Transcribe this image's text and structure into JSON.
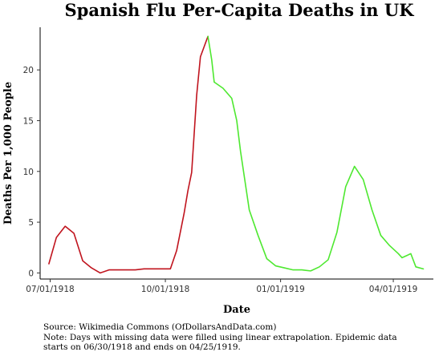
{
  "chart_data": {
    "type": "line",
    "title": "Spanish Flu Per-Capita Deaths in UK",
    "xlabel": "Date",
    "ylabel": "Deaths Per 1,000 People",
    "x_ticks": [
      "07/01/1918",
      "10/01/1918",
      "01/01/1919",
      "04/01/1919"
    ],
    "y_ticks": [
      0,
      5,
      10,
      15,
      20
    ],
    "xlim": [
      "1918-06-23",
      "1919-05-03"
    ],
    "ylim": [
      -0.6,
      24.2
    ],
    "grid": false,
    "legend": "none",
    "series": [
      {
        "color": "#c0141e",
        "points": [
          {
            "x": "1918-06-30",
            "y": 0.9
          },
          {
            "x": "1918-07-06",
            "y": 3.5
          },
          {
            "x": "1918-07-13",
            "y": 4.6
          },
          {
            "x": "1918-07-20",
            "y": 3.9
          },
          {
            "x": "1918-07-27",
            "y": 1.2
          },
          {
            "x": "1918-08-03",
            "y": 0.5
          },
          {
            "x": "1918-08-10",
            "y": 0.0
          },
          {
            "x": "1918-08-17",
            "y": 0.3
          },
          {
            "x": "1918-08-24",
            "y": 0.3
          },
          {
            "x": "1918-08-31",
            "y": 0.3
          },
          {
            "x": "1918-09-07",
            "y": 0.3
          },
          {
            "x": "1918-09-14",
            "y": 0.4
          },
          {
            "x": "1918-09-21",
            "y": 0.4
          },
          {
            "x": "1918-09-28",
            "y": 0.4
          },
          {
            "x": "1918-10-05",
            "y": 0.4
          },
          {
            "x": "1918-10-10",
            "y": 2.2
          },
          {
            "x": "1918-10-16",
            "y": 5.9
          },
          {
            "x": "1918-10-19",
            "y": 8.1
          },
          {
            "x": "1918-10-22",
            "y": 9.9
          },
          {
            "x": "1918-10-26",
            "y": 17.5
          },
          {
            "x": "1918-10-29",
            "y": 21.3
          },
          {
            "x": "1918-11-04",
            "y": 23.3
          }
        ]
      },
      {
        "color": "#4ee830",
        "points": [
          {
            "x": "1918-11-04",
            "y": 23.3
          },
          {
            "x": "1918-11-07",
            "y": 21.0
          },
          {
            "x": "1918-11-09",
            "y": 18.8
          },
          {
            "x": "1918-11-16",
            "y": 18.2
          },
          {
            "x": "1918-11-23",
            "y": 17.2
          },
          {
            "x": "1918-11-27",
            "y": 15.0
          },
          {
            "x": "1918-11-30",
            "y": 12.0
          },
          {
            "x": "1918-12-07",
            "y": 6.2
          },
          {
            "x": "1918-12-14",
            "y": 3.7
          },
          {
            "x": "1918-12-21",
            "y": 1.4
          },
          {
            "x": "1918-12-28",
            "y": 0.7
          },
          {
            "x": "1919-01-04",
            "y": 0.5
          },
          {
            "x": "1919-01-11",
            "y": 0.3
          },
          {
            "x": "1919-01-18",
            "y": 0.3
          },
          {
            "x": "1919-01-25",
            "y": 0.2
          },
          {
            "x": "1919-02-01",
            "y": 0.6
          },
          {
            "x": "1919-02-08",
            "y": 1.3
          },
          {
            "x": "1919-02-15",
            "y": 4.0
          },
          {
            "x": "1919-02-22",
            "y": 8.5
          },
          {
            "x": "1919-03-01",
            "y": 10.5
          },
          {
            "x": "1919-03-08",
            "y": 9.2
          },
          {
            "x": "1919-03-15",
            "y": 6.2
          },
          {
            "x": "1919-03-22",
            "y": 3.7
          },
          {
            "x": "1919-03-29",
            "y": 2.7
          },
          {
            "x": "1919-04-05",
            "y": 1.9
          },
          {
            "x": "1919-04-08",
            "y": 1.5
          },
          {
            "x": "1919-04-15",
            "y": 1.9
          },
          {
            "x": "1919-04-19",
            "y": 0.6
          },
          {
            "x": "1919-04-25",
            "y": 0.4
          }
        ]
      }
    ]
  },
  "notes": {
    "source": "Source: Wikimedia Commons (OfDollarsAndData.com)",
    "note_line1": "Note: Days with missing data were filled using linear extrapolation. Epidemic data",
    "note_line2": "starts on 06/30/1918 and ends on 04/25/1919."
  }
}
